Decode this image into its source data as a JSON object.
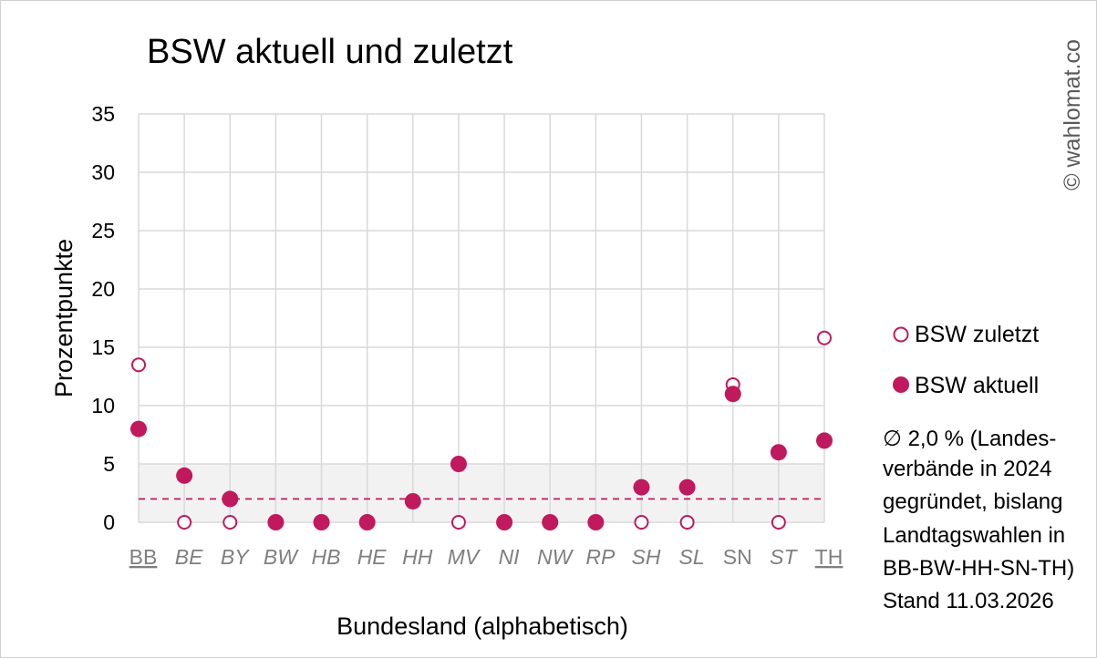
{
  "chart_data": {
    "type": "scatter",
    "title": "BSW aktuell und zuletzt",
    "xlabel": "Bundesland (alphabetisch)",
    "ylabel": "Prozentpunkte",
    "ylim": [
      0,
      35
    ],
    "yticks": [
      0,
      5,
      10,
      15,
      20,
      25,
      30,
      35
    ],
    "categories": [
      "BB",
      "BE",
      "BY",
      "BW",
      "HB",
      "HE",
      "HH",
      "MV",
      "NI",
      "NW",
      "RP",
      "SH",
      "SL",
      "SN",
      "ST",
      "TH"
    ],
    "category_styles": [
      "underlined",
      "italic",
      "italic",
      "italic",
      "italic",
      "italic",
      "italic",
      "italic",
      "italic",
      "italic",
      "italic",
      "italic",
      "italic",
      "upright",
      "italic",
      "underlined"
    ],
    "series": [
      {
        "name": "BSW zuletzt",
        "marker": "open-circle",
        "values": [
          13.5,
          0,
          0,
          0,
          0,
          0,
          1.8,
          0,
          0,
          0,
          0,
          0,
          0,
          11.8,
          0,
          15.8
        ]
      },
      {
        "name": "BSW aktuell",
        "marker": "filled-circle",
        "values": [
          8,
          4,
          2,
          0,
          0,
          0,
          1.8,
          5,
          0,
          0,
          0,
          3,
          3,
          11,
          6,
          7
        ]
      }
    ],
    "band": {
      "from": 0,
      "to": 5
    },
    "average_line": 2.0,
    "grid": true,
    "legend_position": "right",
    "colors": {
      "marker": "#c0195e",
      "band": "#f2f2f2",
      "grid": "#d9d9d9",
      "tick_x": "#7f7f7f"
    }
  },
  "note_lines": [
    "∅ 2,0 % (Landes-",
    "verbände in 2024",
    "gegründet, bislang",
    "Landtagswahlen in",
    "BB-BW-HH-SN-TH)",
    "Stand 11.03.2026"
  ],
  "watermark": "© wahlomat.co"
}
